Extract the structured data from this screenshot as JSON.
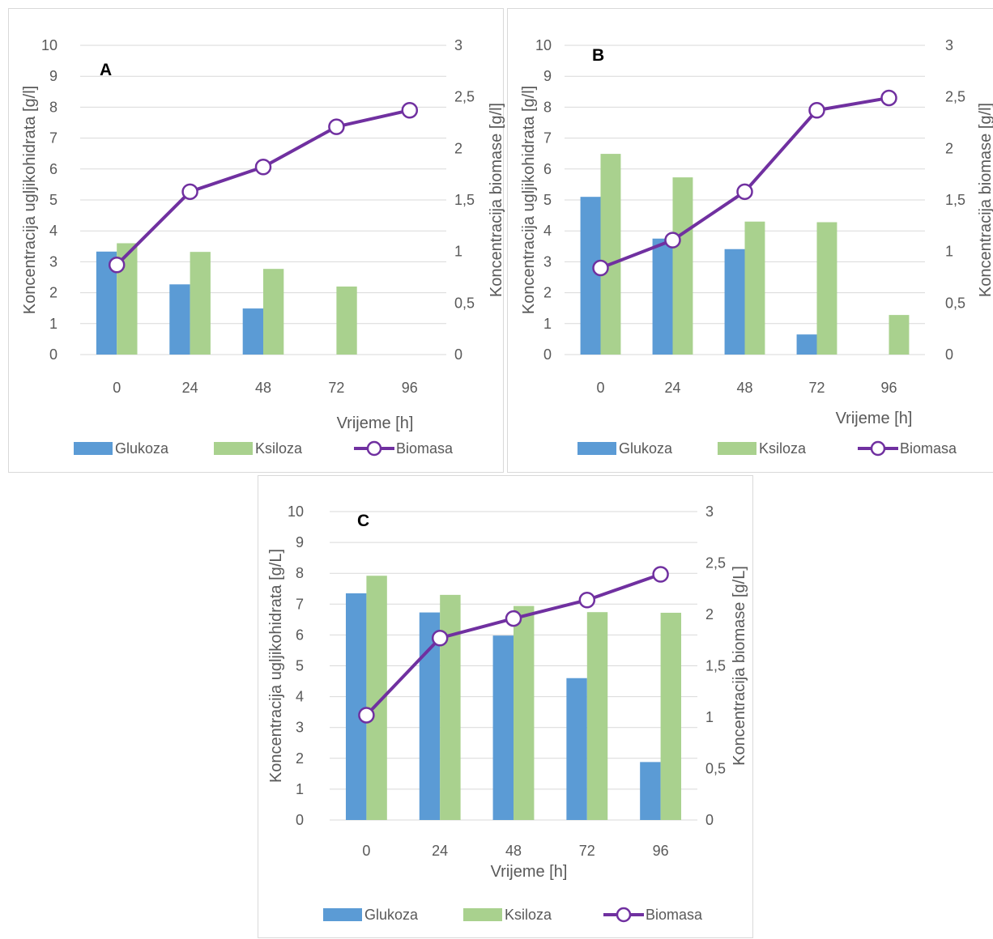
{
  "colors": {
    "glukoza": "#5b9bd5",
    "ksiloza": "#a9d18e",
    "biomasa": "#7030a0",
    "grid": "#d9d9d9",
    "text": "#595959"
  },
  "chart_data": [
    {
      "panel": "A",
      "type": "bar",
      "title": "",
      "xlabel": "Vrijeme [h]",
      "ylabel": "Koncentracija ugljikohidrata [g/l]",
      "y2label": "Koncentracija biomase [g/l]",
      "categories": [
        "0",
        "24",
        "48",
        "72",
        "96"
      ],
      "ylim": [
        0,
        10
      ],
      "y2lim": [
        0,
        3
      ],
      "yticks": [
        "0",
        "1",
        "2",
        "3",
        "4",
        "5",
        "6",
        "7",
        "8",
        "9",
        "10"
      ],
      "y2ticks": [
        "0",
        "0,5",
        "1",
        "1,5",
        "2",
        "2,5",
        "3"
      ],
      "grid": true,
      "legend": "bottom",
      "series": [
        {
          "name": "Glukoza",
          "type": "bar",
          "axis": "left",
          "values": [
            3.33,
            2.27,
            1.49,
            0,
            0
          ]
        },
        {
          "name": "Ksiloza",
          "type": "bar",
          "axis": "left",
          "values": [
            3.6,
            3.32,
            2.77,
            2.2,
            0
          ]
        },
        {
          "name": "Biomasa",
          "type": "line",
          "axis": "right",
          "values": [
            0.87,
            1.58,
            1.82,
            2.21,
            2.37
          ]
        }
      ]
    },
    {
      "panel": "B",
      "type": "bar",
      "title": "",
      "xlabel": "Vrijeme [h]",
      "ylabel": "Koncentracija ugljikohidrata [g/l]",
      "y2label": "Koncentracija biomase [g/l]",
      "categories": [
        "0",
        "24",
        "48",
        "72",
        "96"
      ],
      "ylim": [
        0,
        10
      ],
      "y2lim": [
        0,
        3
      ],
      "yticks": [
        "0",
        "1",
        "2",
        "3",
        "4",
        "5",
        "6",
        "7",
        "8",
        "9",
        "10"
      ],
      "y2ticks": [
        "0",
        "0,5",
        "1",
        "1,5",
        "2",
        "2,5",
        "3"
      ],
      "grid": true,
      "legend": "bottom",
      "series": [
        {
          "name": "Glukoza",
          "type": "bar",
          "axis": "left",
          "values": [
            5.1,
            3.75,
            3.41,
            0.65,
            0
          ]
        },
        {
          "name": "Ksiloza",
          "type": "bar",
          "axis": "left",
          "values": [
            6.49,
            5.73,
            4.3,
            4.28,
            1.28
          ]
        },
        {
          "name": "Biomasa",
          "type": "line",
          "axis": "right",
          "values": [
            0.84,
            1.11,
            1.58,
            2.37,
            2.49
          ]
        }
      ]
    },
    {
      "panel": "C",
      "type": "bar",
      "title": "",
      "xlabel": "Vrijeme [h]",
      "ylabel": "Koncentracija ugljikohidrata [g/L]",
      "y2label": "Koncentracija biomase [g/L]",
      "categories": [
        "0",
        "24",
        "48",
        "72",
        "96"
      ],
      "ylim": [
        0,
        10
      ],
      "y2lim": [
        0,
        3
      ],
      "yticks": [
        "0",
        "1",
        "2",
        "3",
        "4",
        "5",
        "6",
        "7",
        "8",
        "9",
        "10"
      ],
      "y2ticks": [
        "0",
        "0,5",
        "1",
        "1,5",
        "2",
        "2,5",
        "3"
      ],
      "grid": true,
      "legend": "bottom",
      "series": [
        {
          "name": "Glukoza",
          "type": "bar",
          "axis": "left",
          "values": [
            7.35,
            6.73,
            5.98,
            4.6,
            1.88
          ]
        },
        {
          "name": "Ksiloza",
          "type": "bar",
          "axis": "left",
          "values": [
            7.92,
            7.3,
            6.94,
            6.74,
            6.72
          ]
        },
        {
          "name": "Biomasa",
          "type": "line",
          "axis": "right",
          "values": [
            1.02,
            1.77,
            1.96,
            2.14,
            2.39
          ]
        }
      ]
    }
  ]
}
